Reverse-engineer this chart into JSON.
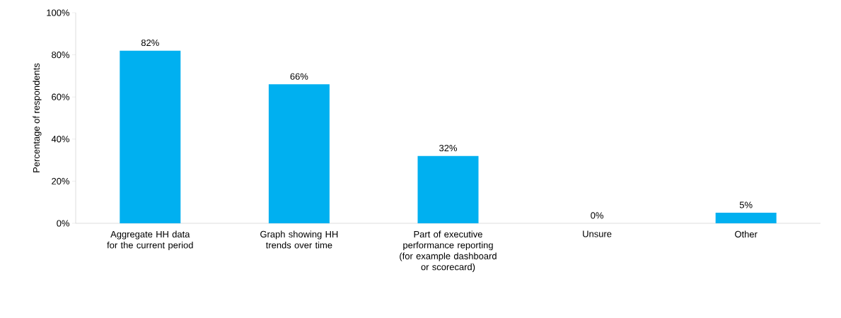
{
  "chart_data": {
    "type": "bar",
    "ylabel": "Percentage of respondents",
    "categories": [
      "Aggregate HH data for the current period",
      "Graph showing HH trends over time",
      "Part of executive performance reporting (for example dashboard or scorecard)",
      "Unsure",
      "Other"
    ],
    "values": [
      82,
      66,
      32,
      0,
      5
    ],
    "value_labels": [
      "82%",
      "66%",
      "32%",
      "0%",
      "5%"
    ],
    "color": "#00b0f0",
    "ylim": [
      0,
      100
    ],
    "yticks": [
      {
        "value": 0,
        "label": "0%"
      },
      {
        "value": 20,
        "label": "20%"
      },
      {
        "value": 40,
        "label": "40%"
      },
      {
        "value": 60,
        "label": "60%"
      },
      {
        "value": 80,
        "label": "80%"
      },
      {
        "value": 100,
        "label": "100%"
      }
    ],
    "grid": false
  }
}
